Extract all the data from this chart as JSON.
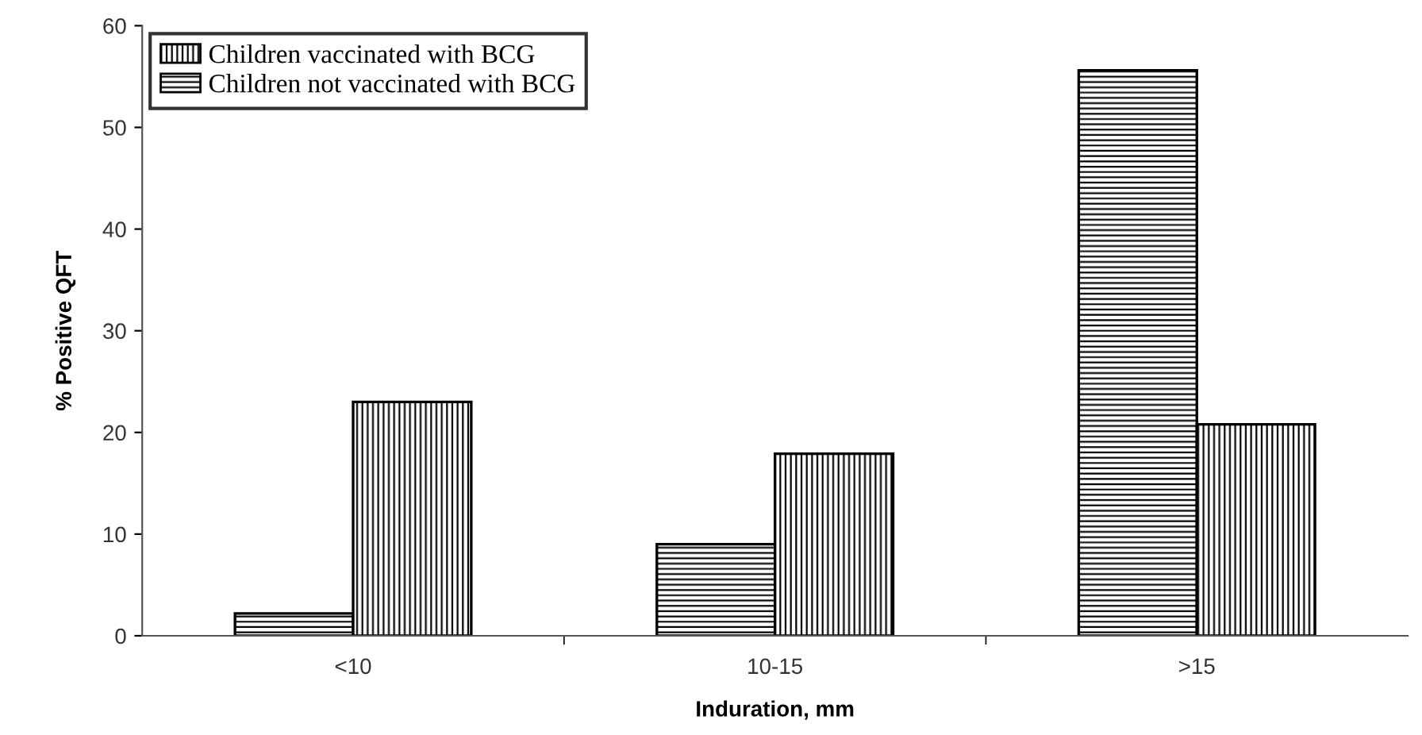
{
  "chart_data": {
    "type": "bar",
    "xlabel": "Induration, mm",
    "ylabel": "% Positive QFT",
    "categories": [
      "<10",
      "10-15",
      ">15"
    ],
    "series": [
      {
        "name": "Children not vaccinated with BCG",
        "color": "#000000",
        "values": [
          2.2,
          9,
          55.6
        ]
      },
      {
        "name": "Children vaccinated with BCG",
        "color": "#000000",
        "values": [
          23,
          17.9,
          20.8
        ]
      }
    ],
    "ylim": [
      0,
      60
    ],
    "yticks": [
      0,
      10,
      20,
      30,
      40,
      50,
      60
    ],
    "grid": false,
    "legend": "top left"
  }
}
